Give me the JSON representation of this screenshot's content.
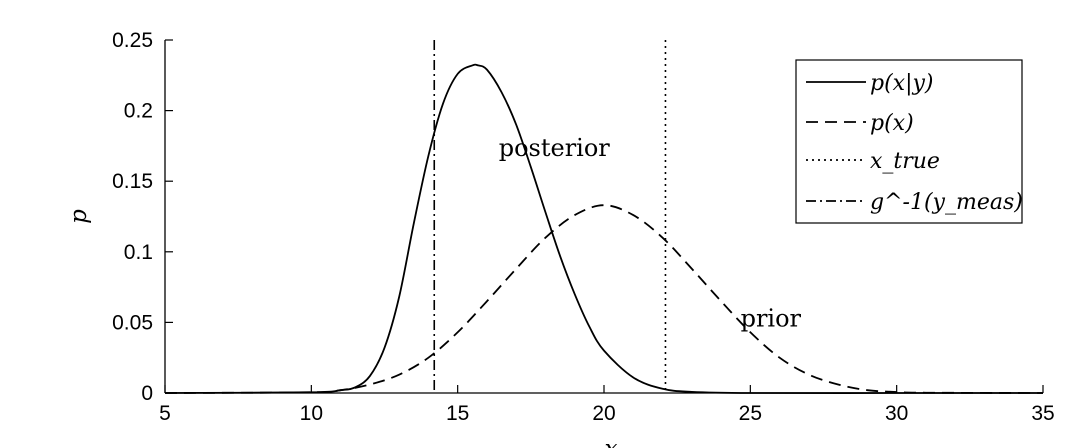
{
  "chart_data": {
    "type": "line",
    "title": "",
    "xlabel": "x",
    "ylabel": "p",
    "xlim": [
      5,
      35
    ],
    "ylim": [
      0,
      0.25
    ],
    "x_ticks": [
      5,
      10,
      15,
      20,
      25,
      30,
      35
    ],
    "y_ticks": [
      0,
      0.05,
      0.1,
      0.15,
      0.2,
      0.25
    ],
    "x_tick_labels": [
      "5",
      "10",
      "15",
      "20",
      "25",
      "30",
      "35"
    ],
    "y_tick_labels": [
      "0",
      "0.05",
      "0.1",
      "0.15",
      "0.2",
      "0.25"
    ],
    "grid": false,
    "legend_position": "top-right",
    "series": [
      {
        "name": "p(x|y)",
        "style": "solid",
        "x": [
          5,
          10,
          11,
          11.5,
          12,
          12.5,
          13,
          13.5,
          14,
          14.5,
          15,
          15.5,
          15.7,
          16,
          16.5,
          17,
          17.5,
          18,
          18.5,
          19,
          19.5,
          20,
          21,
          22,
          23,
          25,
          30,
          35
        ],
        "y": [
          0,
          0.0005,
          0.002,
          0.004,
          0.012,
          0.032,
          0.068,
          0.12,
          0.168,
          0.205,
          0.226,
          0.232,
          0.232,
          0.229,
          0.213,
          0.19,
          0.16,
          0.128,
          0.097,
          0.07,
          0.047,
          0.03,
          0.011,
          0.003,
          0.0008,
          0,
          0,
          0
        ]
      },
      {
        "name": "p(x)",
        "style": "dashed",
        "x": [
          5,
          10,
          11,
          12,
          13,
          14,
          15,
          16,
          17,
          18,
          19,
          20,
          21,
          22,
          23,
          24,
          25,
          26,
          27,
          28,
          29,
          30,
          31,
          35
        ],
        "y": [
          0,
          0.0005,
          0.002,
          0.006,
          0.013,
          0.025,
          0.043,
          0.065,
          0.088,
          0.11,
          0.126,
          0.133,
          0.126,
          0.11,
          0.088,
          0.065,
          0.043,
          0.025,
          0.013,
          0.006,
          0.002,
          0.0007,
          0.0002,
          0
        ]
      },
      {
        "name": "x_true",
        "style": "dotted",
        "vertical_line_x": 22.1
      },
      {
        "name": "g^-1(y_meas)",
        "style": "dashdot",
        "vertical_line_x": 14.2
      }
    ],
    "annotations": [
      {
        "text": "posterior",
        "x": 18.3,
        "y": 0.168
      },
      {
        "text": "prior",
        "x": 25.7,
        "y": 0.047
      }
    ]
  }
}
